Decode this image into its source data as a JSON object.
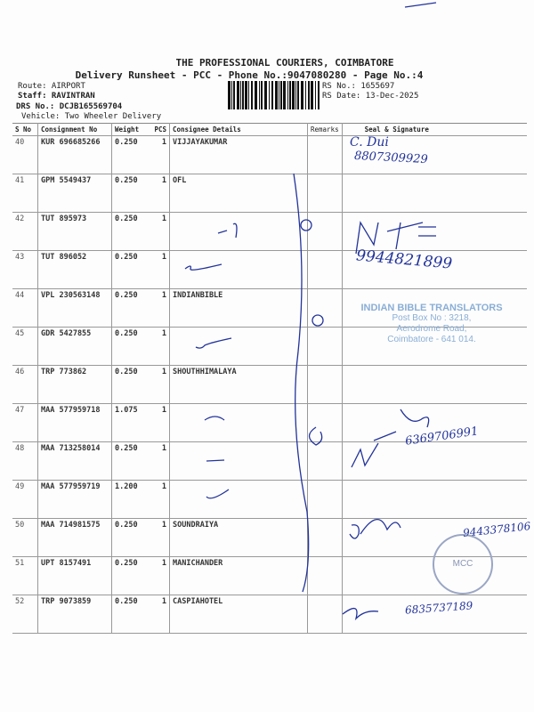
{
  "header": {
    "company": "THE PROFESSIONAL COURIERS, COIMBATORE",
    "subtitle": "Delivery Runsheet - PCC - Phone No.:9047080280 - Page No.:4",
    "route": "Route: AIRPORT",
    "staff": "Staff: RAVINTRAN",
    "drs": "DRS No.: DCJB165569704",
    "vehicle": "Vehicle: Two Wheeler Delivery",
    "rs_no": "RS No.: 1655697",
    "rs_date": "RS Date: 13-Dec-2025"
  },
  "table": {
    "columns": [
      "S No",
      "Consignment No",
      "Weight",
      "PCS",
      "Consignee Details",
      "Remarks",
      "Seal & Signature"
    ],
    "rows": [
      {
        "sno": "40",
        "cn": "KUR 696685266",
        "wt": "0.250",
        "pcs": "1",
        "consignee": "VIJJAYAKUMAR"
      },
      {
        "sno": "41",
        "cn": "GPM 5549437",
        "wt": "0.250",
        "pcs": "1",
        "consignee": "OFL"
      },
      {
        "sno": "42",
        "cn": "TUT 895973",
        "wt": "0.250",
        "pcs": "1",
        "consignee": ""
      },
      {
        "sno": "43",
        "cn": "TUT 896052",
        "wt": "0.250",
        "pcs": "1",
        "consignee": ""
      },
      {
        "sno": "44",
        "cn": "VPL 230563148",
        "wt": "0.250",
        "pcs": "1",
        "consignee": "INDIANBIBLE"
      },
      {
        "sno": "45",
        "cn": "GDR 5427855",
        "wt": "0.250",
        "pcs": "1",
        "consignee": ""
      },
      {
        "sno": "46",
        "cn": "TRP 773862",
        "wt": "0.250",
        "pcs": "1",
        "consignee": "SHOUTHHIMALAYA"
      },
      {
        "sno": "47",
        "cn": "MAA 577959718",
        "wt": "1.075",
        "pcs": "1",
        "consignee": ""
      },
      {
        "sno": "48",
        "cn": "MAA 713258014",
        "wt": "0.250",
        "pcs": "1",
        "consignee": ""
      },
      {
        "sno": "49",
        "cn": "MAA 577959719",
        "wt": "1.200",
        "pcs": "1",
        "consignee": ""
      },
      {
        "sno": "50",
        "cn": "MAA 714981575",
        "wt": "0.250",
        "pcs": "1",
        "consignee": "SOUNDRAIYA"
      },
      {
        "sno": "51",
        "cn": "UPT 8157491",
        "wt": "0.250",
        "pcs": "1",
        "consignee": "MANICHANDER"
      },
      {
        "sno": "52",
        "cn": "TRP 9073859",
        "wt": "0.250",
        "pcs": "1",
        "consignee": "CASPIAHOTEL"
      }
    ]
  },
  "handwriting": {
    "row40_name": "C. Dui",
    "row40_phone": "8807309929",
    "row42_phone": "9944821899",
    "row48_phone": "6369706991",
    "row50_phone": "9443378106",
    "row52_phone": "6835737189"
  },
  "stamp": {
    "line1": "INDIAN BIBLE TRANSLATORS",
    "line2": "Post Box No : 3218,",
    "line3": "Aerodrome Road,",
    "line4": "Coimbatore - 641 014.",
    "round_seal": "MCC"
  },
  "colors": {
    "ink": "#22339a",
    "stamp": "#8aaed6"
  }
}
